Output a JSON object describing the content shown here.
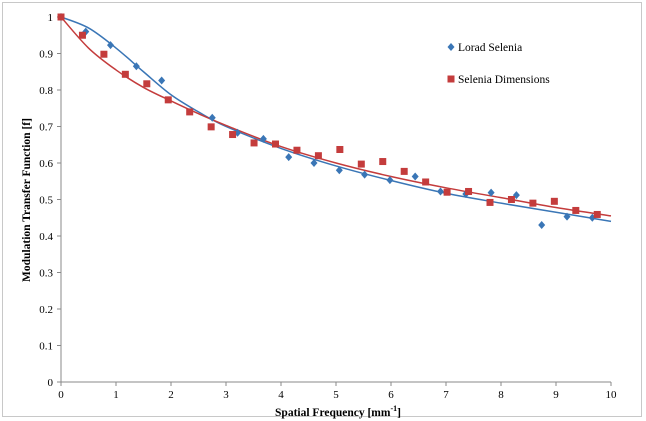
{
  "chart_data": {
    "type": "scatter",
    "xlabel": "Spatial Frequency [mm",
    "xlabel_sup": "-1",
    "xlabel_suffix": "]",
    "ylabel": "Modulation Transfer Function [f]",
    "xlim": [
      0,
      10
    ],
    "ylim": [
      0,
      1
    ],
    "x_ticks": [
      "0",
      "1",
      "2",
      "3",
      "4",
      "5",
      "6",
      "7",
      "8",
      "9",
      "10"
    ],
    "y_ticks": [
      "0",
      "0.1",
      "0.2",
      "0.3",
      "0.4",
      "0.5",
      "0.6",
      "0.7",
      "0.8",
      "0.9",
      "1"
    ],
    "grid": false,
    "legend_position": "top-right",
    "series": [
      {
        "name": "Lorad Selenia",
        "marker": "diamond",
        "color": "#3a76b6",
        "points": [
          [
            0,
            1.0
          ],
          [
            0.45,
            0.96
          ],
          [
            0.9,
            0.923
          ],
          [
            1.37,
            0.865
          ],
          [
            1.83,
            0.826
          ],
          [
            2.75,
            0.724
          ],
          [
            3.21,
            0.683
          ],
          [
            3.68,
            0.666
          ],
          [
            4.14,
            0.616
          ],
          [
            4.6,
            0.6
          ],
          [
            5.06,
            0.58
          ],
          [
            5.52,
            0.568
          ],
          [
            5.98,
            0.553
          ],
          [
            6.44,
            0.563
          ],
          [
            6.9,
            0.522
          ],
          [
            7.36,
            0.515
          ],
          [
            7.82,
            0.519
          ],
          [
            8.28,
            0.512
          ],
          [
            8.74,
            0.43
          ],
          [
            9.2,
            0.453
          ],
          [
            9.66,
            0.45
          ]
        ],
        "fit": [
          [
            0,
            1.0
          ],
          [
            0.5,
            0.97
          ],
          [
            1,
            0.915
          ],
          [
            1.5,
            0.85
          ],
          [
            2,
            0.787
          ],
          [
            2.5,
            0.74
          ],
          [
            3,
            0.7
          ],
          [
            4,
            0.64
          ],
          [
            5,
            0.592
          ],
          [
            6,
            0.552
          ],
          [
            7,
            0.517
          ],
          [
            8,
            0.49
          ],
          [
            9,
            0.465
          ],
          [
            10,
            0.44
          ]
        ]
      },
      {
        "name": "Selenia Dimensions",
        "marker": "square",
        "color": "#c43c3c",
        "points": [
          [
            0,
            1.0
          ],
          [
            0.39,
            0.95
          ],
          [
            0.78,
            0.898
          ],
          [
            1.17,
            0.843
          ],
          [
            1.56,
            0.817
          ],
          [
            1.95,
            0.773
          ],
          [
            2.34,
            0.74
          ],
          [
            2.73,
            0.699
          ],
          [
            3.12,
            0.678
          ],
          [
            3.51,
            0.655
          ],
          [
            3.9,
            0.652
          ],
          [
            4.29,
            0.635
          ],
          [
            4.68,
            0.62
          ],
          [
            5.07,
            0.637
          ],
          [
            5.46,
            0.597
          ],
          [
            5.85,
            0.604
          ],
          [
            6.24,
            0.577
          ],
          [
            6.63,
            0.548
          ],
          [
            7.02,
            0.52
          ],
          [
            7.41,
            0.522
          ],
          [
            7.8,
            0.492
          ],
          [
            8.19,
            0.5
          ],
          [
            8.58,
            0.49
          ],
          [
            8.97,
            0.495
          ],
          [
            9.36,
            0.47
          ],
          [
            9.75,
            0.459
          ]
        ],
        "fit": [
          [
            0,
            1.0
          ],
          [
            0.5,
            0.915
          ],
          [
            1,
            0.855
          ],
          [
            1.5,
            0.807
          ],
          [
            2,
            0.77
          ],
          [
            2.5,
            0.735
          ],
          [
            3,
            0.703
          ],
          [
            4,
            0.645
          ],
          [
            5,
            0.6
          ],
          [
            6,
            0.563
          ],
          [
            7,
            0.532
          ],
          [
            8,
            0.505
          ],
          [
            9,
            0.478
          ],
          [
            10,
            0.455
          ]
        ]
      }
    ]
  }
}
